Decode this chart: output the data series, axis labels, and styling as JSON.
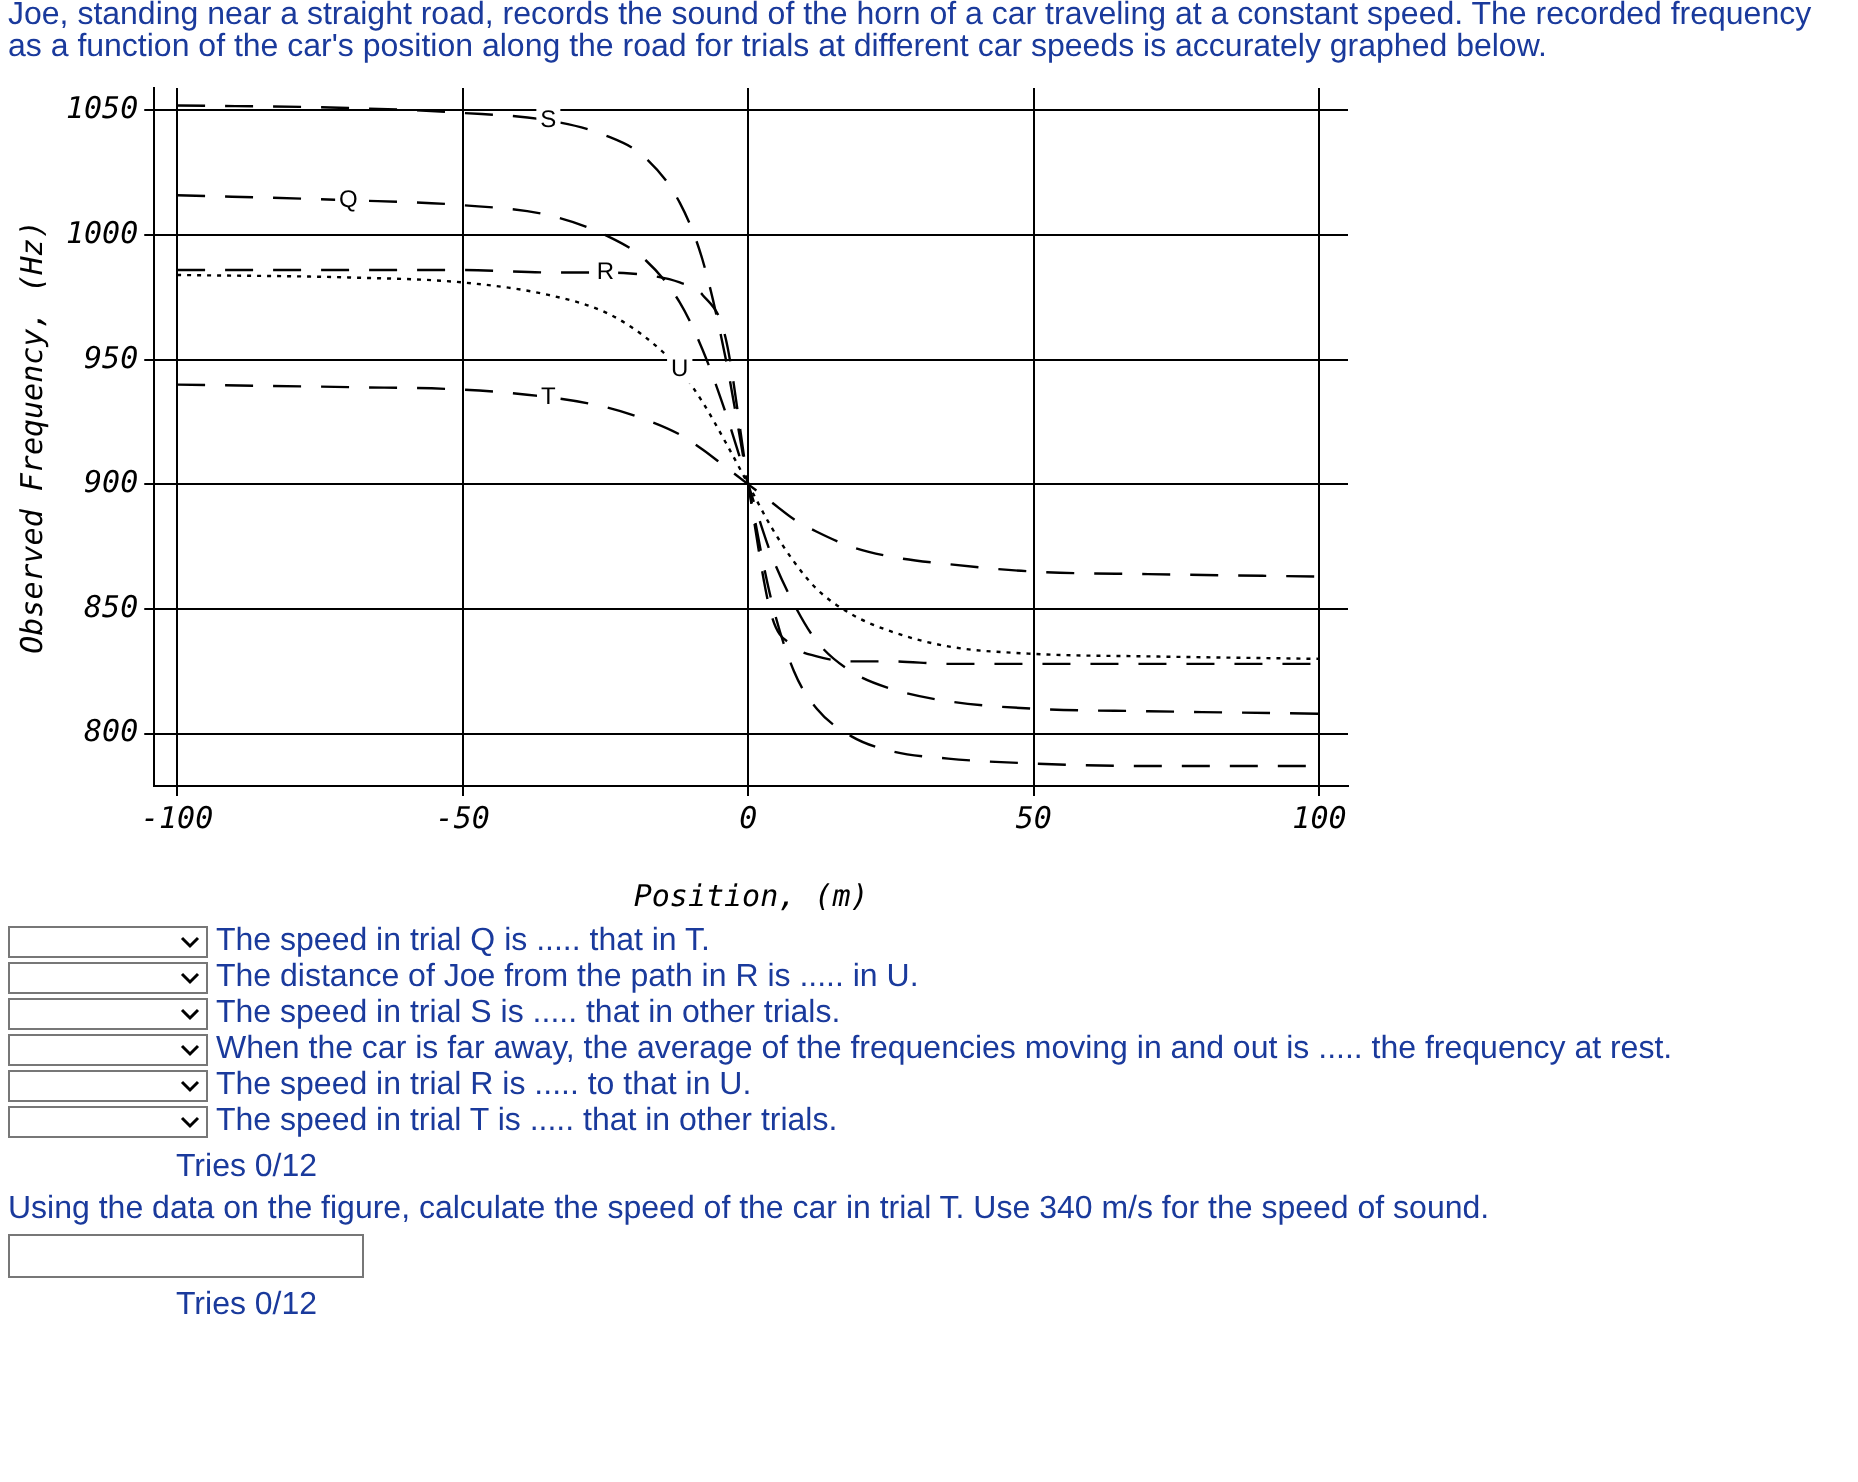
{
  "chart_data": {
    "type": "line",
    "title": "Joe, standing near a straight road, records the sound of the horn of a car traveling at a constant speed. The recorded frequency as a function of the car's position along the road for trials at different car speeds is accurately graphed below.",
    "xlabel": "Position, (m)",
    "ylabel": "Observed Frequency, (Hz)",
    "x": [
      -100,
      -70,
      -50,
      -35,
      -25,
      -18,
      -12,
      -8,
      -4,
      0,
      4,
      8,
      12,
      18,
      25,
      35,
      50,
      70,
      100
    ],
    "series": [
      {
        "name": "S",
        "color": "#000000",
        "line_style": "dashed",
        "values": [
          1052,
          1051,
          1049,
          1046,
          1040,
          1031,
          1013,
          990,
          951,
          900,
          854,
          825,
          810,
          799,
          793,
          790,
          788,
          787,
          787
        ]
      },
      {
        "name": "Q",
        "color": "#000000",
        "line_style": "dashed",
        "values": [
          1016,
          1014,
          1012,
          1008,
          1000,
          990,
          973,
          954,
          929,
          900,
          872,
          852,
          837,
          825,
          818,
          813,
          810,
          809,
          808
        ]
      },
      {
        "name": "R",
        "color": "#000000",
        "line_style": "dashed",
        "values": [
          986,
          986,
          986,
          985,
          985,
          984,
          981,
          976,
          959,
          900,
          848,
          835,
          831,
          829,
          829,
          828,
          828,
          828,
          828
        ]
      },
      {
        "name": "U",
        "color": "#000000",
        "line_style": "dotted",
        "values": [
          984,
          983,
          981,
          976,
          969,
          959,
          946,
          933,
          917,
          900,
          883,
          869,
          858,
          848,
          841,
          835,
          832,
          831,
          830
        ]
      },
      {
        "name": "T",
        "color": "#000000",
        "line_style": "dashed",
        "values": [
          940,
          939,
          938,
          935,
          931,
          926,
          920,
          914,
          907,
          900,
          893,
          886,
          881,
          875,
          871,
          868,
          865,
          864,
          863
        ]
      }
    ],
    "xlim": [
      -104,
      105
    ],
    "ylim": [
      779,
      1059
    ],
    "xticks": [
      -100,
      -50,
      0,
      50,
      100
    ],
    "yticks": [
      800,
      850,
      900,
      950,
      1000,
      1050
    ],
    "grid": true,
    "legend": false,
    "annotations": [
      "The speed in trial Q is ..... that in T.",
      "The distance of Joe from the path in R is ..... in U.",
      "The speed in trial S is ..... that in other trials.",
      "When the car is far away, the average of the frequencies moving in and out is ..... the frequency at rest.",
      "The speed in trial R is ..... to that in U.",
      "The speed in trial T is ..... that in other trials.",
      "Tries 0/12",
      "Using the data on the figure, calculate the speed of the car in trial T. Use 340 m/s for the speed of sound.",
      "Tries 0/12"
    ]
  }
}
